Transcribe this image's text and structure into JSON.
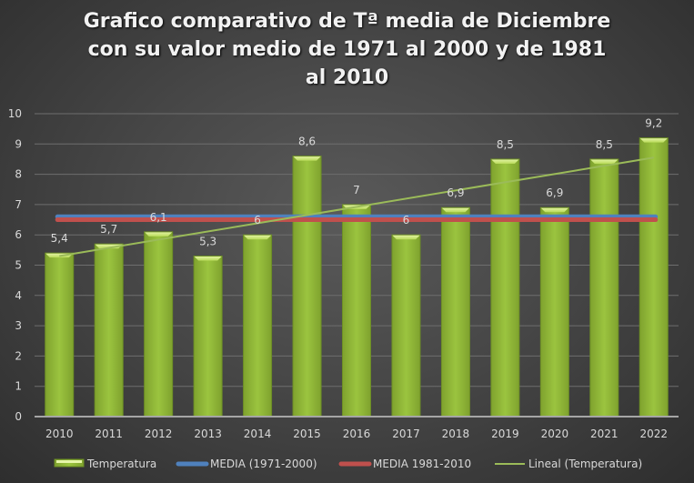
{
  "chart_data": {
    "type": "bar",
    "title_lines": [
      "Grafico comparativo de Tª media de Diciembre",
      "con su valor medio de 1971 al 2000 y de 1981",
      "al 2010"
    ],
    "categories": [
      "2010",
      "2011",
      "2012",
      "2013",
      "2014",
      "2015",
      "2016",
      "2017",
      "2018",
      "2019",
      "2020",
      "2021",
      "2022"
    ],
    "series": [
      {
        "name": "Temperatura",
        "type": "bar",
        "values": [
          5.4,
          5.7,
          6.1,
          5.3,
          6,
          8.6,
          7,
          6,
          6.9,
          8.5,
          6.9,
          8.5,
          9.2
        ],
        "labels": [
          "5,4",
          "5,7",
          "6,1",
          "5,3",
          "6",
          "8,6",
          "7",
          "6",
          "6,9",
          "8,5",
          "6,9",
          "8,5",
          "9,2"
        ],
        "color": "#9bc43f"
      },
      {
        "name": "MEDIA (1971-2000)",
        "type": "line",
        "value": 6.6,
        "color": "#4f81bd"
      },
      {
        "name": "MEDIA 1981-2010",
        "type": "line",
        "value": 6.5,
        "color": "#c0504d"
      },
      {
        "name": "Lineal (Temperatura)",
        "type": "trendline",
        "start": 5.3,
        "end": 8.55,
        "color": "#9bbb59"
      }
    ],
    "yticks": [
      "0",
      "1",
      "2",
      "3",
      "4",
      "5",
      "6",
      "7",
      "8",
      "9",
      "10"
    ],
    "ylim": [
      0,
      10
    ],
    "xlabel": "",
    "ylabel": "",
    "grid": true,
    "legend_position": "bottom"
  }
}
